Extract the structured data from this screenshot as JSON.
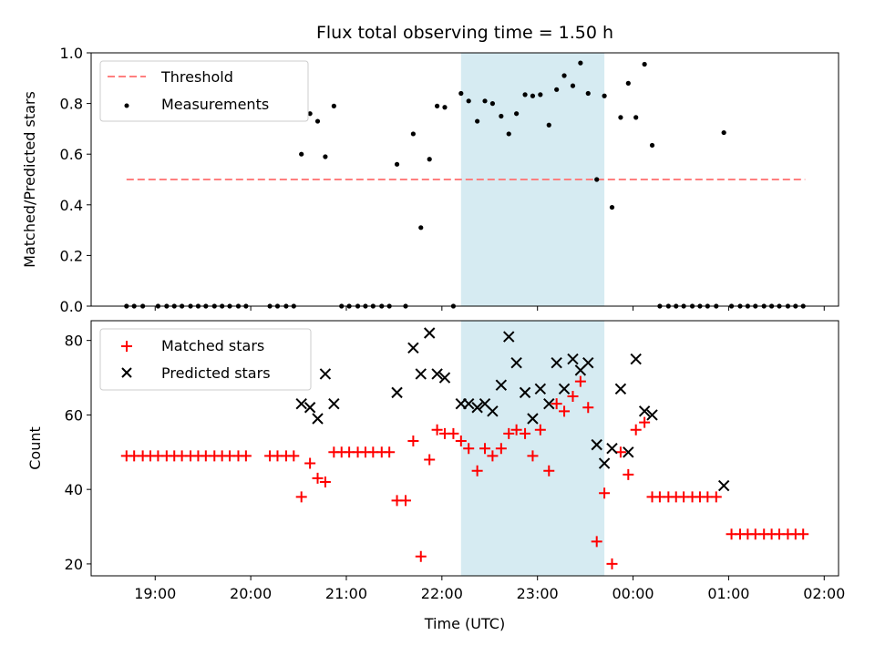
{
  "figure": {
    "title": "Flux total observing time = 1.50 h",
    "xlabel": "Time (UTC)",
    "xticks": [
      {
        "t": 19.0,
        "label": "19:00"
      },
      {
        "t": 20.0,
        "label": "20:00"
      },
      {
        "t": 21.0,
        "label": "21:00"
      },
      {
        "t": 22.0,
        "label": "22:00"
      },
      {
        "t": 23.0,
        "label": "23:00"
      },
      {
        "t": 24.0,
        "label": "00:00"
      },
      {
        "t": 25.0,
        "label": "01:00"
      },
      {
        "t": 26.0,
        "label": "02:00"
      }
    ],
    "xlim": [
      18.33,
      26.15
    ],
    "shaded_span": [
      22.2,
      23.7
    ],
    "colors": {
      "threshold": "#ff7f7f",
      "measurements": "#000000",
      "matched": "#ff0000",
      "predicted": "#000000",
      "span": "#add8e6"
    }
  },
  "chart_data": [
    {
      "type": "scatter",
      "ylabel": "Matched/Predicted stars",
      "ylim": [
        0,
        1.0
      ],
      "yticks": [
        "0.0",
        "0.2",
        "0.4",
        "0.6",
        "0.8",
        "1.0"
      ],
      "legend": {
        "placement": "top-left",
        "entries": [
          "Threshold",
          "Measurements"
        ]
      },
      "threshold": {
        "name": "Threshold",
        "x": [
          18.7,
          25.8
        ],
        "y": 0.5
      },
      "measurements": {
        "name": "Measurements",
        "points": [
          [
            18.7,
            0
          ],
          [
            18.78,
            0
          ],
          [
            18.87,
            0
          ],
          [
            19.03,
            0
          ],
          [
            19.12,
            0
          ],
          [
            19.2,
            0
          ],
          [
            19.28,
            0
          ],
          [
            19.37,
            0
          ],
          [
            19.45,
            0
          ],
          [
            19.53,
            0
          ],
          [
            19.62,
            0
          ],
          [
            19.7,
            0
          ],
          [
            19.78,
            0
          ],
          [
            19.87,
            0
          ],
          [
            19.95,
            0
          ],
          [
            20.2,
            0
          ],
          [
            20.28,
            0
          ],
          [
            20.37,
            0
          ],
          [
            20.45,
            0
          ],
          [
            20.53,
            0.6
          ],
          [
            20.62,
            0.76
          ],
          [
            20.7,
            0.73
          ],
          [
            20.78,
            0.59
          ],
          [
            20.87,
            0.79
          ],
          [
            20.95,
            0
          ],
          [
            21.03,
            0
          ],
          [
            21.12,
            0
          ],
          [
            21.2,
            0
          ],
          [
            21.28,
            0
          ],
          [
            21.37,
            0
          ],
          [
            21.45,
            0
          ],
          [
            21.53,
            0.56
          ],
          [
            21.62,
            0
          ],
          [
            21.7,
            0.68
          ],
          [
            21.78,
            0.31
          ],
          [
            21.87,
            0.58
          ],
          [
            21.95,
            0.79
          ],
          [
            22.03,
            0.785
          ],
          [
            22.12,
            0
          ],
          [
            22.2,
            0.84
          ],
          [
            22.28,
            0.81
          ],
          [
            22.37,
            0.73
          ],
          [
            22.45,
            0.81
          ],
          [
            22.53,
            0.8
          ],
          [
            22.62,
            0.75
          ],
          [
            22.7,
            0.68
          ],
          [
            22.78,
            0.76
          ],
          [
            22.87,
            0.835
          ],
          [
            22.95,
            0.83
          ],
          [
            23.03,
            0.835
          ],
          [
            23.12,
            0.715
          ],
          [
            23.2,
            0.855
          ],
          [
            23.28,
            0.91
          ],
          [
            23.37,
            0.87
          ],
          [
            23.45,
            0.96
          ],
          [
            23.53,
            0.84
          ],
          [
            23.62,
            0.5
          ],
          [
            23.7,
            0.83
          ],
          [
            23.78,
            0.39
          ],
          [
            23.87,
            0.745
          ],
          [
            23.95,
            0.88
          ],
          [
            24.03,
            0.745
          ],
          [
            24.12,
            0.955
          ],
          [
            24.2,
            0.635
          ],
          [
            24.28,
            0
          ],
          [
            24.37,
            0
          ],
          [
            24.45,
            0
          ],
          [
            24.53,
            0
          ],
          [
            24.62,
            0
          ],
          [
            24.7,
            0
          ],
          [
            24.78,
            0
          ],
          [
            24.87,
            0
          ],
          [
            24.95,
            0.685
          ],
          [
            25.03,
            0
          ],
          [
            25.12,
            0
          ],
          [
            25.2,
            0
          ],
          [
            25.28,
            0
          ],
          [
            25.37,
            0
          ],
          [
            25.45,
            0
          ],
          [
            25.53,
            0
          ],
          [
            25.62,
            0
          ],
          [
            25.7,
            0
          ],
          [
            25.78,
            0
          ]
        ]
      }
    },
    {
      "type": "scatter",
      "ylabel": "Count",
      "ylim": [
        16.8,
        85.3
      ],
      "yticks": [
        "20",
        "40",
        "60",
        "80"
      ],
      "legend": {
        "placement": "top-left",
        "entries": [
          "Matched stars",
          "Predicted stars"
        ]
      },
      "matched": {
        "name": "Matched stars",
        "points": [
          [
            18.7,
            49
          ],
          [
            18.78,
            49
          ],
          [
            18.87,
            49
          ],
          [
            18.95,
            49
          ],
          [
            19.03,
            49
          ],
          [
            19.12,
            49
          ],
          [
            19.2,
            49
          ],
          [
            19.28,
            49
          ],
          [
            19.37,
            49
          ],
          [
            19.45,
            49
          ],
          [
            19.53,
            49
          ],
          [
            19.62,
            49
          ],
          [
            19.7,
            49
          ],
          [
            19.78,
            49
          ],
          [
            19.87,
            49
          ],
          [
            19.95,
            49
          ],
          [
            20.2,
            49
          ],
          [
            20.28,
            49
          ],
          [
            20.37,
            49
          ],
          [
            20.45,
            49
          ],
          [
            20.53,
            38
          ],
          [
            20.62,
            47
          ],
          [
            20.7,
            43
          ],
          [
            20.78,
            42
          ],
          [
            20.87,
            50
          ],
          [
            20.95,
            50
          ],
          [
            21.03,
            50
          ],
          [
            21.12,
            50
          ],
          [
            21.2,
            50
          ],
          [
            21.28,
            50
          ],
          [
            21.37,
            50
          ],
          [
            21.45,
            50
          ],
          [
            21.53,
            37
          ],
          [
            21.62,
            37
          ],
          [
            21.7,
            53
          ],
          [
            21.78,
            22
          ],
          [
            21.87,
            48
          ],
          [
            21.95,
            56
          ],
          [
            22.03,
            55
          ],
          [
            22.12,
            55
          ],
          [
            22.2,
            53
          ],
          [
            22.28,
            51
          ],
          [
            22.37,
            45
          ],
          [
            22.45,
            51
          ],
          [
            22.53,
            49
          ],
          [
            22.62,
            51
          ],
          [
            22.7,
            55
          ],
          [
            22.78,
            56
          ],
          [
            22.87,
            55
          ],
          [
            22.95,
            49
          ],
          [
            23.03,
            56
          ],
          [
            23.12,
            45
          ],
          [
            23.2,
            63
          ],
          [
            23.28,
            61
          ],
          [
            23.37,
            65
          ],
          [
            23.45,
            69
          ],
          [
            23.53,
            62
          ],
          [
            23.62,
            26
          ],
          [
            23.7,
            39
          ],
          [
            23.78,
            20
          ],
          [
            23.87,
            50
          ],
          [
            23.95,
            44
          ],
          [
            24.03,
            56
          ],
          [
            24.12,
            58
          ],
          [
            24.2,
            38
          ],
          [
            24.28,
            38
          ],
          [
            24.37,
            38
          ],
          [
            24.45,
            38
          ],
          [
            24.53,
            38
          ],
          [
            24.62,
            38
          ],
          [
            24.7,
            38
          ],
          [
            24.78,
            38
          ],
          [
            24.87,
            38
          ],
          [
            25.03,
            28
          ],
          [
            25.12,
            28
          ],
          [
            25.2,
            28
          ],
          [
            25.28,
            28
          ],
          [
            25.37,
            28
          ],
          [
            25.45,
            28
          ],
          [
            25.53,
            28
          ],
          [
            25.62,
            28
          ],
          [
            25.7,
            28
          ],
          [
            25.78,
            28
          ]
        ]
      },
      "predicted": {
        "name": "Predicted stars",
        "points": [
          [
            20.53,
            63
          ],
          [
            20.62,
            62
          ],
          [
            20.7,
            59
          ],
          [
            20.78,
            71
          ],
          [
            20.87,
            63
          ],
          [
            21.53,
            66
          ],
          [
            21.7,
            78
          ],
          [
            21.78,
            71
          ],
          [
            21.87,
            82
          ],
          [
            21.95,
            71
          ],
          [
            22.03,
            70
          ],
          [
            22.2,
            63
          ],
          [
            22.28,
            63
          ],
          [
            22.37,
            62
          ],
          [
            22.45,
            63
          ],
          [
            22.53,
            61
          ],
          [
            22.62,
            68
          ],
          [
            22.7,
            81
          ],
          [
            22.78,
            74
          ],
          [
            22.87,
            66
          ],
          [
            22.95,
            59
          ],
          [
            23.03,
            67
          ],
          [
            23.12,
            63
          ],
          [
            23.2,
            74
          ],
          [
            23.28,
            67
          ],
          [
            23.37,
            75
          ],
          [
            23.45,
            72
          ],
          [
            23.53,
            74
          ],
          [
            23.62,
            52
          ],
          [
            23.7,
            47
          ],
          [
            23.78,
            51
          ],
          [
            23.87,
            67
          ],
          [
            23.95,
            50
          ],
          [
            24.03,
            75
          ],
          [
            24.12,
            61
          ],
          [
            24.2,
            60
          ],
          [
            24.95,
            41
          ]
        ]
      }
    }
  ]
}
